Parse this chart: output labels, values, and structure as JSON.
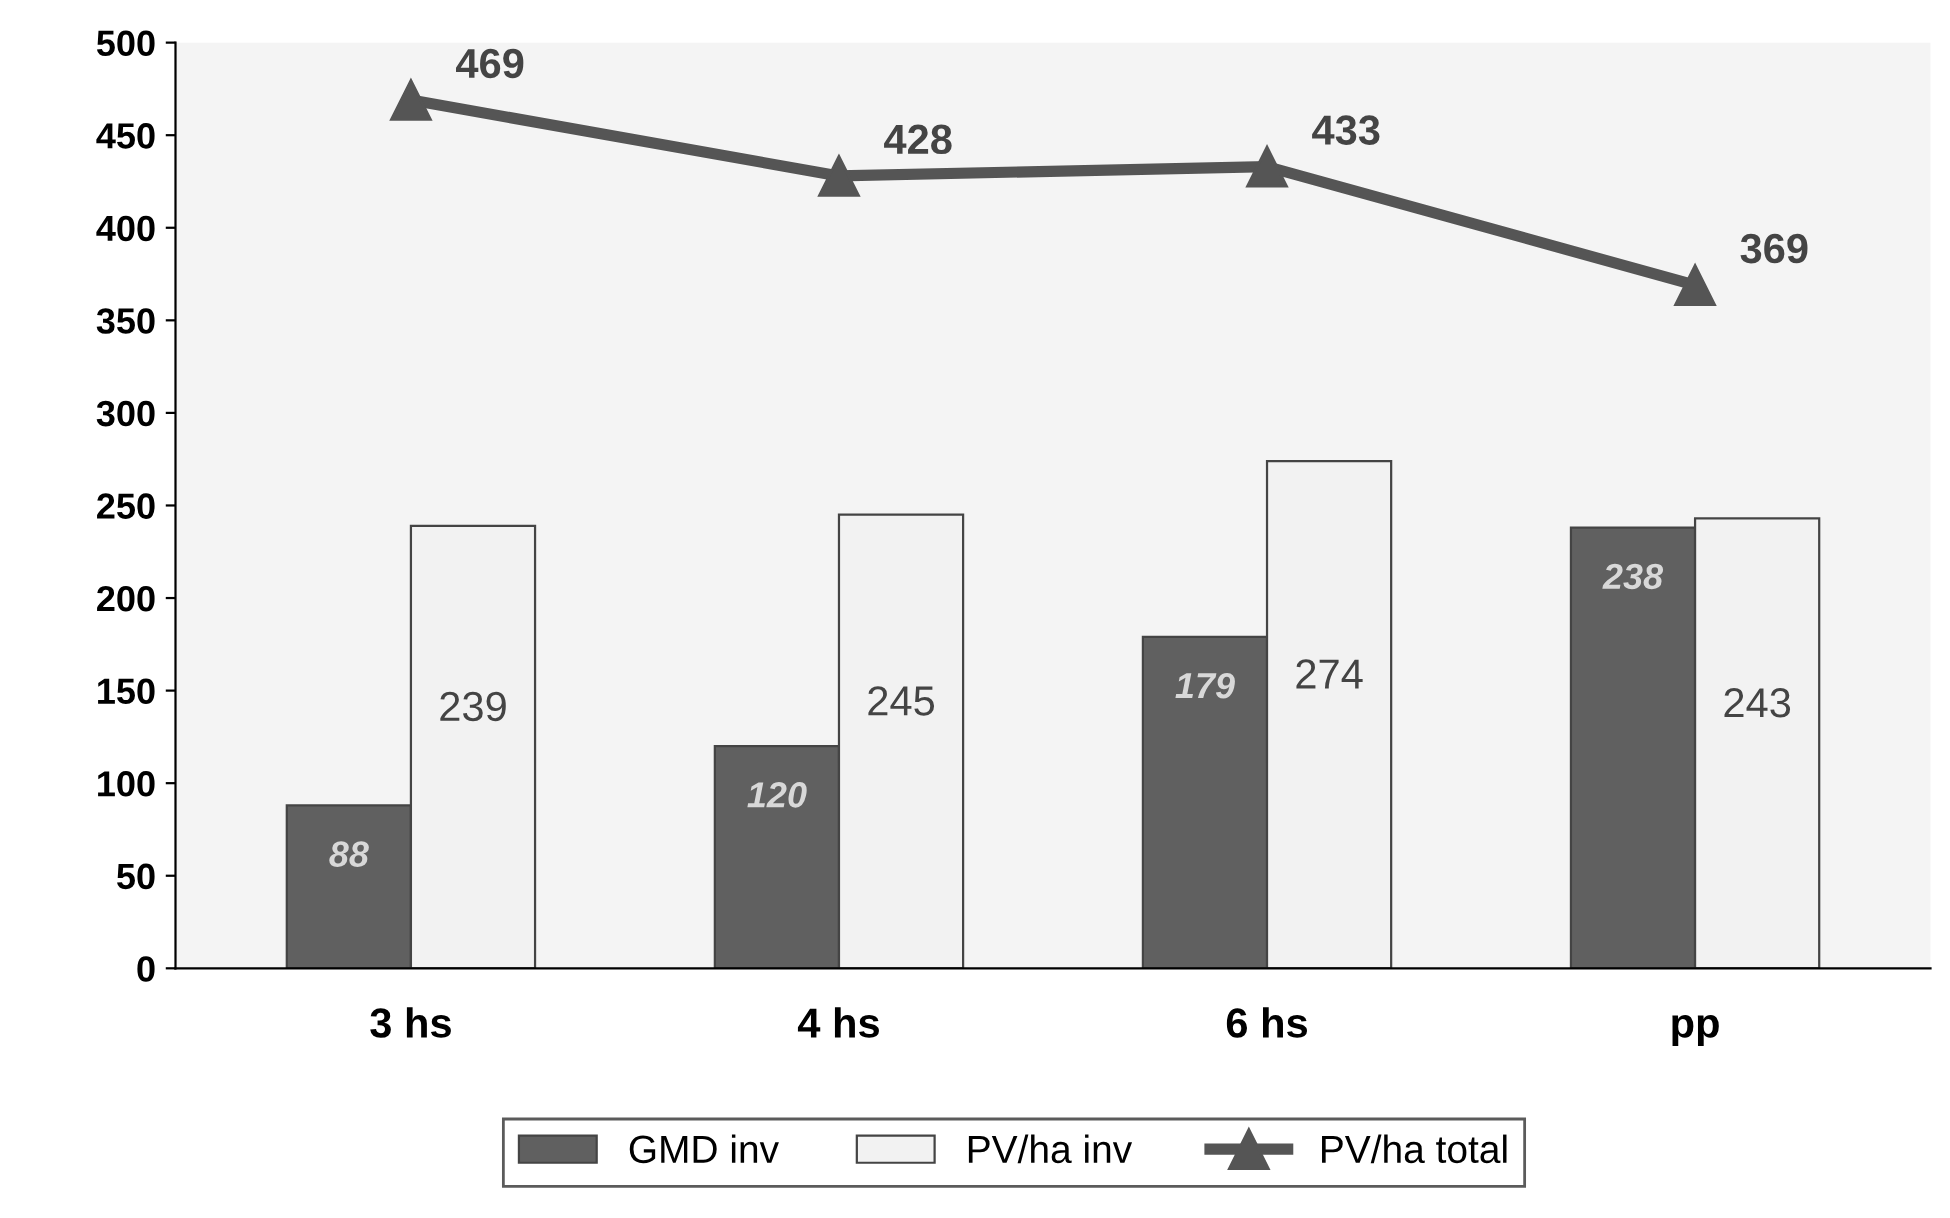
{
  "chart_data": {
    "type": "bar",
    "categories": [
      "3 hs",
      "4 hs",
      "6 hs",
      "pp"
    ],
    "series": [
      {
        "name": "GMD inv",
        "color": "#606060",
        "values": [
          88,
          120,
          179,
          238
        ]
      },
      {
        "name": "PV/ha inv",
        "color": "#f2f2f2",
        "values": [
          239,
          245,
          274,
          243
        ]
      },
      {
        "name": "PV/ha total",
        "type": "line",
        "color": "#555555",
        "marker": "triangle",
        "values": [
          469,
          428,
          433,
          369
        ]
      }
    ],
    "data_labels": true,
    "ylim": [
      0,
      500
    ],
    "yticks": [
      0,
      50,
      100,
      150,
      200,
      250,
      300,
      350,
      400,
      450,
      500
    ],
    "grid": false,
    "legend": "bottom"
  }
}
